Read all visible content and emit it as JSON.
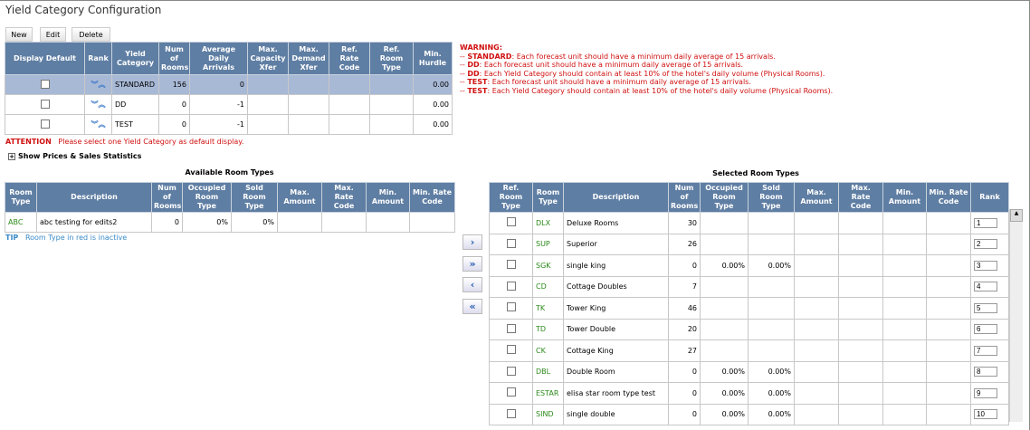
{
  "title": "Yield Category Configuration",
  "toolbar": {
    "new": "New",
    "edit": "Edit",
    "delete": "Delete"
  },
  "yield_table": {
    "headers": [
      "Display Default",
      "Rank",
      "Yield Category",
      "Num of Rooms",
      "Average Daily Arrivals",
      "Max. Capacity Xfer",
      "Max. Demand Xfer",
      "Ref. Rate Code",
      "Ref. Room Type",
      "Min. Hurdle"
    ],
    "rows": [
      {
        "category": "STANDARD",
        "rooms": "156",
        "arrivals": "0",
        "min_hurdle": "0.00",
        "selected": true
      },
      {
        "category": "DD",
        "rooms": "0",
        "arrivals": "-1",
        "min_hurdle": "0.00",
        "selected": false
      },
      {
        "category": "TEST",
        "rooms": "0",
        "arrivals": "-1",
        "min_hurdle": "0.00",
        "selected": false
      }
    ]
  },
  "attention": {
    "label": "ATTENTION",
    "text": "Please select one Yield Category as default display."
  },
  "show_stats": "Show Prices & Sales Statistics",
  "warning": {
    "title": "WARNING:",
    "items": [
      {
        "name": "STANDARD",
        "text": ": Each forecast unit should have a minimum daily average of 15 arrivals."
      },
      {
        "name": "DD",
        "text": ": Each forecast unit should have a minimum daily average of 15 arrivals."
      },
      {
        "name": "DD",
        "text": ": Each Yield Category should contain at least 10% of the hotel's daily volume (Physical Rooms)."
      },
      {
        "name": "TEST",
        "text": ": Each forecast unit should have a minimum daily average of 15 arrivals."
      },
      {
        "name": "TEST",
        "text": ": Each Yield Category should contain at least 10% of the hotel's daily volume (Physical Rooms)."
      }
    ]
  },
  "available": {
    "title": "Available Room Types",
    "headers": [
      "Room Type",
      "Description",
      "Num of Rooms",
      "Occupied Room Type",
      "Sold Room Type",
      "Max. Amount",
      "Max. Rate Code",
      "Min. Amount",
      "Min. Rate Code"
    ],
    "rows": [
      {
        "code": "ABC",
        "desc": "abc testing for edits2",
        "rooms": "0",
        "occ": "0%",
        "sold": "0%"
      }
    ]
  },
  "tip": {
    "label": "TIP",
    "text": "Room Type in red is inactive"
  },
  "move_buttons": [
    "move-right",
    "move-all-right",
    "move-left",
    "move-all-left"
  ],
  "selected": {
    "title": "Selected Room Types",
    "headers": [
      "Ref. Room Type",
      "Room Type",
      "Description",
      "Num of Rooms",
      "Occupied Room Type",
      "Sold Room Type",
      "Max. Amount",
      "Max. Rate Code",
      "Min. Amount",
      "Min. Rate Code",
      "Rank"
    ],
    "rows": [
      {
        "code": "DLX",
        "desc": "Deluxe Rooms",
        "rooms": "30",
        "occ": "",
        "sold": "",
        "rank": "1"
      },
      {
        "code": "SUP",
        "desc": "Superior",
        "rooms": "26",
        "occ": "",
        "sold": "",
        "rank": "2"
      },
      {
        "code": "SGK",
        "desc": "single king",
        "rooms": "0",
        "occ": "0.00%",
        "sold": "0.00%",
        "rank": "3"
      },
      {
        "code": "CD",
        "desc": "Cottage Doubles",
        "rooms": "7",
        "occ": "",
        "sold": "",
        "rank": "4"
      },
      {
        "code": "TK",
        "desc": "Tower King",
        "rooms": "46",
        "occ": "",
        "sold": "",
        "rank": "5"
      },
      {
        "code": "TD",
        "desc": "Tower Double",
        "rooms": "20",
        "occ": "",
        "sold": "",
        "rank": "6"
      },
      {
        "code": "CK",
        "desc": "Cottage King",
        "rooms": "27",
        "occ": "",
        "sold": "",
        "rank": "7"
      },
      {
        "code": "DBL",
        "desc": "Double Room",
        "rooms": "0",
        "occ": "0.00%",
        "sold": "0.00%",
        "rank": "8"
      },
      {
        "code": "ESTAR",
        "desc": "elisa star room type test",
        "rooms": "0",
        "occ": "0.00%",
        "sold": "0.00%",
        "rank": "9"
      },
      {
        "code": "SIND",
        "desc": "single double",
        "rooms": "0",
        "occ": "0.00%",
        "sold": "0.00%",
        "rank": "10"
      }
    ]
  },
  "colors": {
    "header": "#5f7ea3",
    "selected_row": "#a8b9d6",
    "warning": "#d01010",
    "room_code": "#2b8a1a",
    "tip": "#3a8ac8"
  }
}
